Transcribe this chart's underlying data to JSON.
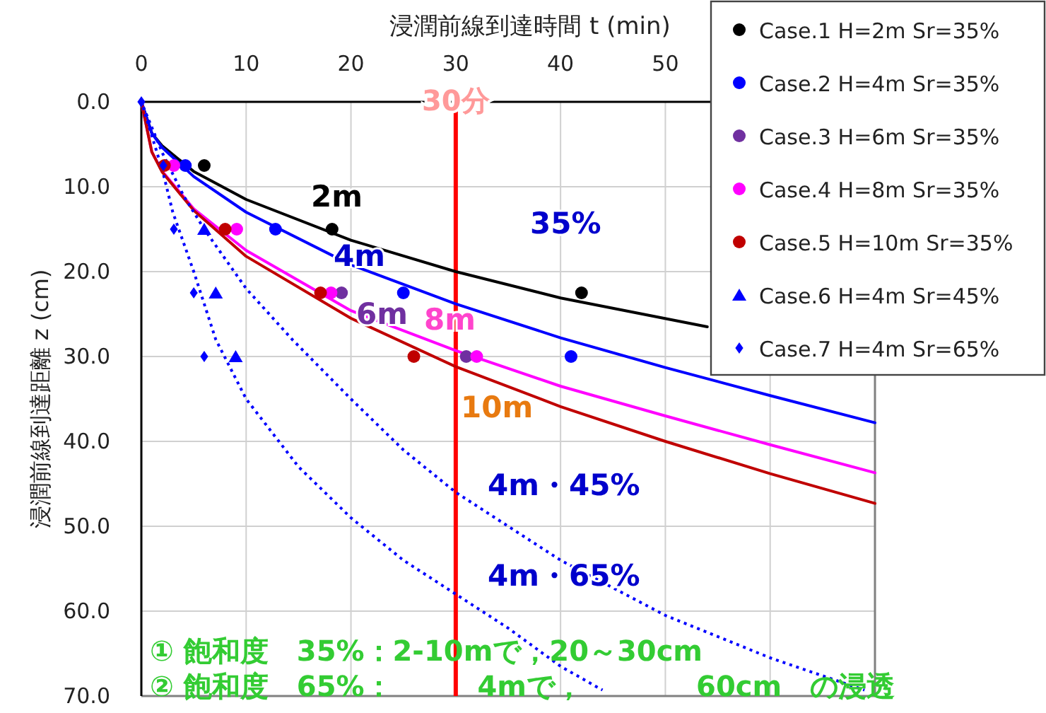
{
  "chart_data": {
    "type": "scatter",
    "xlabel": "浸潤前線到達時間 t (min)",
    "ylabel": "浸潤前線到達距離 z (cm)",
    "xlim": [
      0,
      70
    ],
    "xticks": [
      0,
      10,
      20,
      30,
      40,
      50,
      {
        "value": 60,
        "label": null
      },
      {
        "value": 70,
        "label": null
      }
    ],
    "ylim": [
      70,
      0
    ],
    "yticks": [
      {
        "value": 0,
        "label": "0.0"
      },
      {
        "value": 10,
        "label": "10.0"
      },
      {
        "value": 20,
        "label": "20.0"
      },
      {
        "value": 30,
        "label": "30.0"
      },
      {
        "value": 40,
        "label": "40.0"
      },
      {
        "value": 50,
        "label": "50.0"
      },
      {
        "value": 60,
        "label": "60.0"
      },
      {
        "value": 70,
        "label": "70.0"
      }
    ],
    "grid": true,
    "legend": "top right",
    "series": [
      {
        "type": "line",
        "color": "#000000",
        "line_style": "solid",
        "x": [
          0,
          1,
          2,
          5,
          10,
          20,
          30,
          40,
          54
        ],
        "values": [
          0,
          3.7,
          5.2,
          8.2,
          11.5,
          16.3,
          20,
          23.1,
          26.5
        ]
      },
      {
        "type": "line",
        "color": "#0000ff",
        "line_style": "solid",
        "x": [
          0,
          1,
          2,
          5,
          10,
          20,
          30,
          40,
          50,
          60,
          70
        ],
        "values": [
          0,
          3.7,
          5.4,
          8.8,
          13,
          19.2,
          23.8,
          27.8,
          31.3,
          34.6,
          37.8
        ]
      },
      {
        "type": "line",
        "color": "#ff00ff",
        "line_style": "solid",
        "x": [
          0,
          1,
          2,
          5,
          10,
          20,
          30,
          40,
          50,
          60,
          70
        ],
        "values": [
          0,
          5.9,
          8.2,
          12.6,
          17.5,
          24.6,
          29.3,
          33.5,
          37,
          40.4,
          43.7
        ]
      },
      {
        "type": "line",
        "color": "#c00000",
        "line_style": "solid",
        "x": [
          0,
          1,
          2,
          5,
          10,
          20,
          30,
          40,
          50,
          60,
          70
        ],
        "values": [
          0,
          5.9,
          8.3,
          12.8,
          18.2,
          25.5,
          31.2,
          35.9,
          40,
          43.8,
          47.3
        ]
      },
      {
        "type": "line",
        "color": "#0000ff",
        "line_style": "dotted",
        "x": [
          0,
          1,
          2,
          4,
          6,
          10,
          14.4,
          20,
          25,
          30,
          40,
          50,
          60,
          69
        ],
        "values": [
          0,
          3,
          6,
          11,
          15,
          22,
          28,
          35,
          41,
          46,
          54,
          60.5,
          65.5,
          69.3
        ]
      },
      {
        "type": "line",
        "color": "#0000ff",
        "line_style": "dotted",
        "x": [
          0,
          1,
          2,
          3,
          5,
          7.1,
          10,
          15,
          20,
          25,
          30,
          35,
          40,
          44
        ],
        "values": [
          0,
          4,
          8,
          13,
          20,
          28,
          35,
          43,
          49,
          54,
          58,
          62,
          66.5,
          69.3
        ]
      },
      {
        "name": "Case.1 H=2m Sr=35%",
        "color": "#000000",
        "marker": "circle",
        "x": [
          6,
          18.2,
          42
        ],
        "values": [
          7.5,
          15,
          22.5
        ]
      },
      {
        "name": "Case.2 H=4m Sr=35%",
        "color": "#0000ff",
        "marker": "circle",
        "x": [
          4.2,
          12.8,
          25,
          41
        ],
        "values": [
          7.5,
          15,
          22.5,
          30
        ]
      },
      {
        "name": "Case.3 H=6m Sr=35%",
        "color": "#7030a0",
        "marker": "circle",
        "x": [
          19.1,
          31
        ],
        "values": [
          22.5,
          30
        ]
      },
      {
        "name": "Case.4 H=8m Sr=35%",
        "color": "#ff00ff",
        "marker": "circle",
        "x": [
          3.1,
          9.1,
          18.1,
          32
        ],
        "values": [
          7.5,
          15,
          22.5,
          30
        ]
      },
      {
        "name": "Case.5 H=10m Sr=35%",
        "color": "#c00000",
        "marker": "circle",
        "x": [
          2.2,
          8,
          17.1,
          26
        ],
        "values": [
          7.5,
          15,
          22.5,
          30
        ]
      },
      {
        "name": "Case.6 H=4m Sr=45%",
        "color": "#0000ff",
        "marker": "triangle",
        "x": [
          6,
          7.1,
          9
        ],
        "values": [
          15,
          22.5,
          30
        ]
      },
      {
        "name": "Case.7 H=4m Sr=65%",
        "color": "#0000ff",
        "marker": "diamond",
        "x": [
          0,
          2.1,
          3.1,
          5,
          6
        ],
        "values": [
          0,
          7.5,
          15,
          22.5,
          30
        ]
      }
    ],
    "ref_lines": [
      {
        "axis": "x",
        "value": 30,
        "label": "30分",
        "color": "#ff0000"
      }
    ],
    "annotations": [
      "2m",
      "4m",
      "6m",
      "8m",
      "10m",
      "35%",
      "4m・45%",
      "4m・65%",
      "① 飽和度　35%：2‐10mで，20～30cm",
      "② 飽和度　65%：　　　4mで，　　　　60cm　の浸透"
    ]
  }
}
